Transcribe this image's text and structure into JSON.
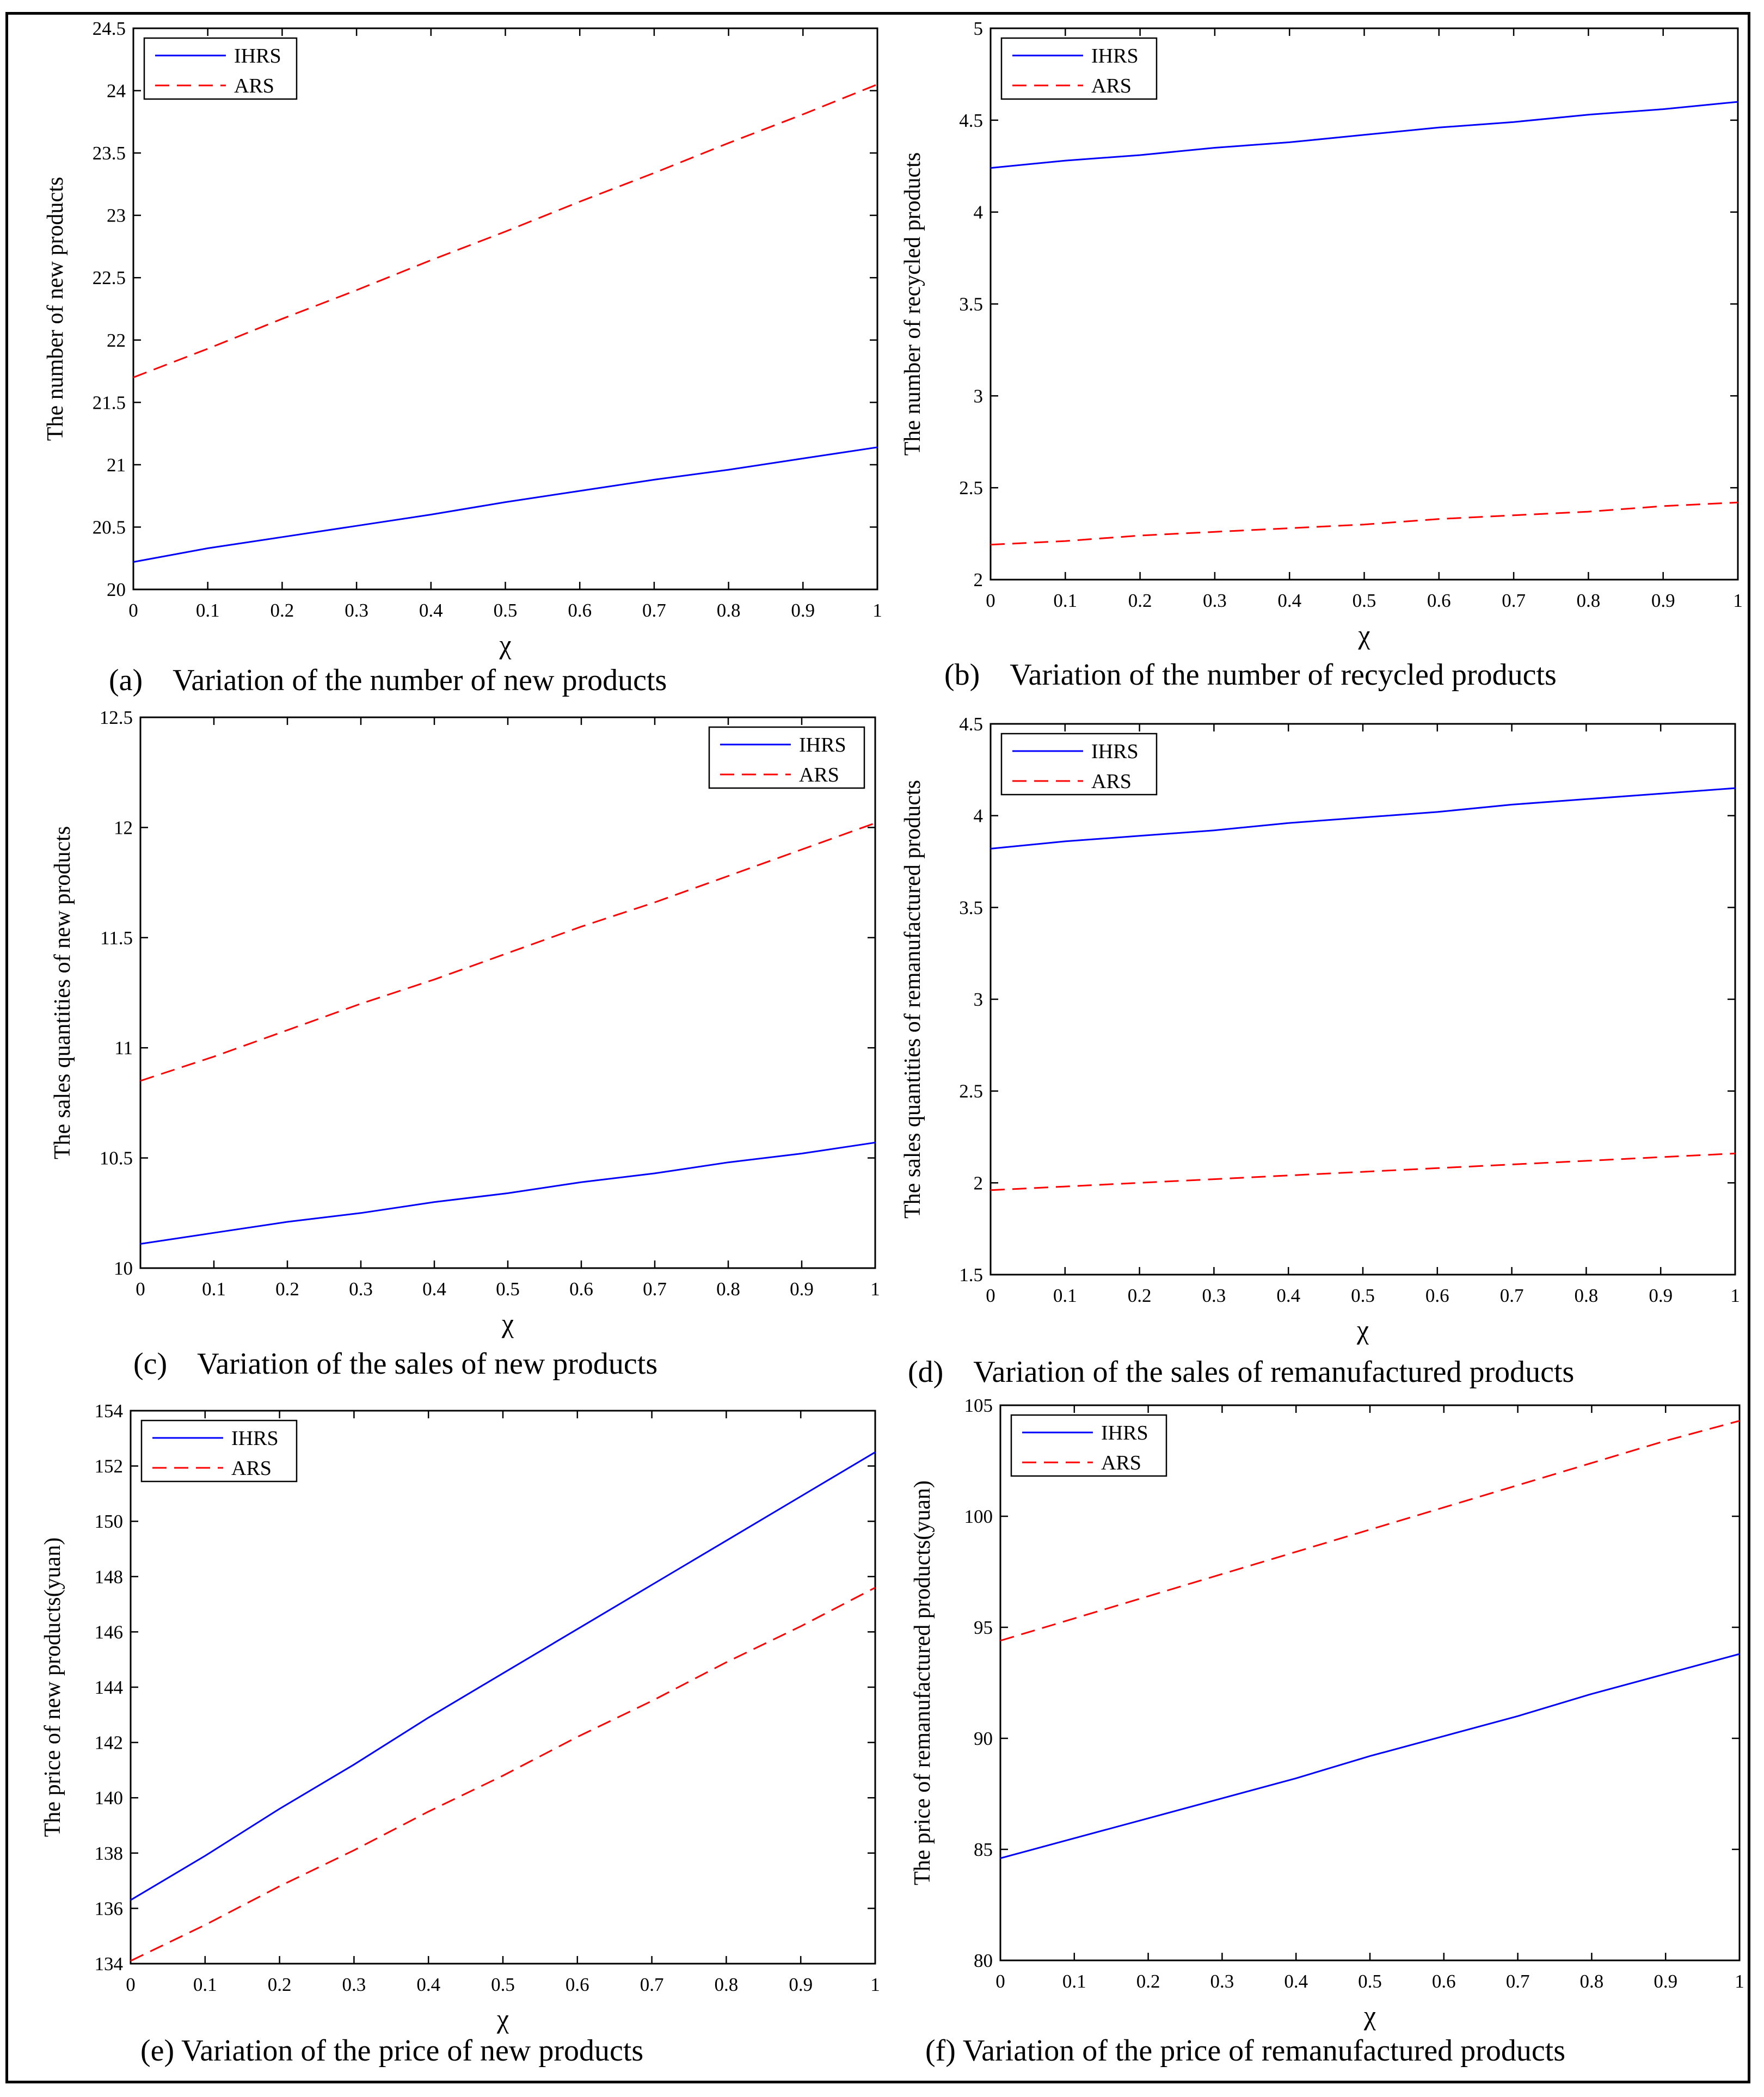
{
  "figure": {
    "colors": {
      "IHRS": "#0000ff",
      "ARS": "#ff0000",
      "axis": "#000000"
    },
    "panels": [
      {
        "caption": "(a)    Variation of the number of new products",
        "chart_data": {
          "type": "line",
          "title": "",
          "xlabel": "χ",
          "ylabel": "The number of new products",
          "xlim": [
            0,
            1
          ],
          "ylim": [
            20,
            24.5
          ],
          "xticks": [
            0,
            0.1,
            0.2,
            0.3,
            0.4,
            0.5,
            0.6,
            0.7,
            0.8,
            0.9,
            1
          ],
          "yticks": [
            20,
            20.5,
            21,
            21.5,
            22,
            22.5,
            23,
            23.5,
            24,
            24.5
          ],
          "legend_position": "top-left",
          "x": [
            0,
            0.1,
            0.2,
            0.3,
            0.4,
            0.5,
            0.6,
            0.7,
            0.8,
            0.9,
            1
          ],
          "series": [
            {
              "name": "IHRS",
              "style": "solid",
              "values": [
                20.22,
                20.33,
                20.42,
                20.51,
                20.6,
                20.7,
                20.79,
                20.88,
                20.96,
                21.05,
                21.14
              ]
            },
            {
              "name": "ARS",
              "style": "dashed",
              "values": [
                21.7,
                21.93,
                22.17,
                22.4,
                22.64,
                22.87,
                23.11,
                23.34,
                23.58,
                23.81,
                24.05
              ]
            }
          ]
        }
      },
      {
        "caption": "(b)    Variation of the number of recycled products",
        "chart_data": {
          "type": "line",
          "title": "",
          "xlabel": "χ",
          "ylabel": "The number of recycled products",
          "xlim": [
            0,
            1
          ],
          "ylim": [
            2,
            5
          ],
          "xticks": [
            0,
            0.1,
            0.2,
            0.3,
            0.4,
            0.5,
            0.6,
            0.7,
            0.8,
            0.9,
            1
          ],
          "yticks": [
            2,
            2.5,
            3,
            3.5,
            4,
            4.5,
            5
          ],
          "legend_position": "top-left",
          "x": [
            0,
            0.1,
            0.2,
            0.3,
            0.4,
            0.5,
            0.6,
            0.7,
            0.8,
            0.9,
            1
          ],
          "series": [
            {
              "name": "IHRS",
              "style": "solid",
              "values": [
                4.24,
                4.28,
                4.31,
                4.35,
                4.38,
                4.42,
                4.46,
                4.49,
                4.53,
                4.56,
                4.6
              ]
            },
            {
              "name": "ARS",
              "style": "dashed",
              "values": [
                2.19,
                2.21,
                2.24,
                2.26,
                2.28,
                2.3,
                2.33,
                2.35,
                2.37,
                2.4,
                2.42
              ]
            }
          ]
        }
      },
      {
        "caption": "(c)    Variation of the sales of new products",
        "chart_data": {
          "type": "line",
          "title": "",
          "xlabel": "χ",
          "ylabel": "The sales quantities of new products",
          "xlim": [
            0,
            1
          ],
          "ylim": [
            10,
            12.5
          ],
          "xticks": [
            0,
            0.1,
            0.2,
            0.3,
            0.4,
            0.5,
            0.6,
            0.7,
            0.8,
            0.9,
            1
          ],
          "yticks": [
            10,
            10.5,
            11,
            11.5,
            12,
            12.5
          ],
          "legend_position": "top-right",
          "x": [
            0,
            0.1,
            0.2,
            0.3,
            0.4,
            0.5,
            0.6,
            0.7,
            0.8,
            0.9,
            1
          ],
          "series": [
            {
              "name": "IHRS",
              "style": "solid",
              "values": [
                10.11,
                10.16,
                10.21,
                10.25,
                10.3,
                10.34,
                10.39,
                10.43,
                10.48,
                10.52,
                10.57
              ]
            },
            {
              "name": "ARS",
              "style": "dashed",
              "values": [
                10.85,
                10.96,
                11.08,
                11.2,
                11.31,
                11.43,
                11.55,
                11.66,
                11.78,
                11.9,
                12.02
              ]
            }
          ]
        }
      },
      {
        "caption": "(d)    Variation of the sales of remanufactured products",
        "chart_data": {
          "type": "line",
          "title": "",
          "xlabel": "χ",
          "ylabel": "The sales quantities of remanufactured products",
          "xlim": [
            0,
            1
          ],
          "ylim": [
            1.5,
            4.5
          ],
          "xticks": [
            0,
            0.1,
            0.2,
            0.3,
            0.4,
            0.5,
            0.6,
            0.7,
            0.8,
            0.9,
            1
          ],
          "yticks": [
            1.5,
            2,
            2.5,
            3,
            3.5,
            4,
            4.5
          ],
          "legend_position": "top-left",
          "x": [
            0,
            0.1,
            0.2,
            0.3,
            0.4,
            0.5,
            0.6,
            0.7,
            0.8,
            0.9,
            1
          ],
          "series": [
            {
              "name": "IHRS",
              "style": "solid",
              "values": [
                3.82,
                3.86,
                3.89,
                3.92,
                3.96,
                3.99,
                4.02,
                4.06,
                4.09,
                4.12,
                4.15
              ]
            },
            {
              "name": "ARS",
              "style": "dashed",
              "values": [
                1.96,
                1.98,
                2.0,
                2.02,
                2.04,
                2.06,
                2.08,
                2.1,
                2.12,
                2.14,
                2.16
              ]
            }
          ]
        }
      },
      {
        "caption": "(e) Variation of the price of new products",
        "chart_data": {
          "type": "line",
          "title": "",
          "xlabel": "χ",
          "ylabel": "The price of new products(yuan)",
          "xlim": [
            0,
            1
          ],
          "ylim": [
            134,
            154
          ],
          "xticks": [
            0,
            0.1,
            0.2,
            0.3,
            0.4,
            0.5,
            0.6,
            0.7,
            0.8,
            0.9,
            1
          ],
          "yticks": [
            134,
            136,
            138,
            140,
            142,
            144,
            146,
            148,
            150,
            152,
            154
          ],
          "legend_position": "top-left",
          "x": [
            0,
            0.1,
            0.2,
            0.3,
            0.4,
            0.5,
            0.6,
            0.7,
            0.8,
            0.9,
            1
          ],
          "series": [
            {
              "name": "IHRS",
              "style": "solid",
              "values": [
                136.3,
                137.9,
                139.6,
                141.2,
                142.9,
                144.5,
                146.1,
                147.7,
                149.3,
                150.9,
                152.5
              ]
            },
            {
              "name": "ARS",
              "style": "dashed",
              "values": [
                134.1,
                135.4,
                136.8,
                138.1,
                139.5,
                140.8,
                142.2,
                143.5,
                144.9,
                146.2,
                147.6
              ]
            }
          ]
        }
      },
      {
        "caption": "(f) Variation of the price of remanufactured products",
        "chart_data": {
          "type": "line",
          "title": "",
          "xlabel": "χ",
          "ylabel": "The price of remanufactured products(yuan)",
          "xlim": [
            0,
            1
          ],
          "ylim": [
            80,
            105
          ],
          "xticks": [
            0,
            0.1,
            0.2,
            0.3,
            0.4,
            0.5,
            0.6,
            0.7,
            0.8,
            0.9,
            1
          ],
          "yticks": [
            80,
            85,
            90,
            95,
            100,
            105
          ],
          "legend_position": "top-left",
          "x": [
            0,
            0.1,
            0.2,
            0.3,
            0.4,
            0.5,
            0.6,
            0.7,
            0.8,
            0.9,
            1
          ],
          "series": [
            {
              "name": "IHRS",
              "style": "solid",
              "values": [
                84.6,
                85.5,
                86.4,
                87.3,
                88.2,
                89.2,
                90.1,
                91.0,
                92.0,
                92.9,
                93.8
              ]
            },
            {
              "name": "ARS",
              "style": "dashed",
              "values": [
                94.4,
                95.4,
                96.4,
                97.4,
                98.4,
                99.4,
                100.4,
                101.4,
                102.4,
                103.4,
                104.3
              ]
            }
          ]
        }
      }
    ]
  }
}
